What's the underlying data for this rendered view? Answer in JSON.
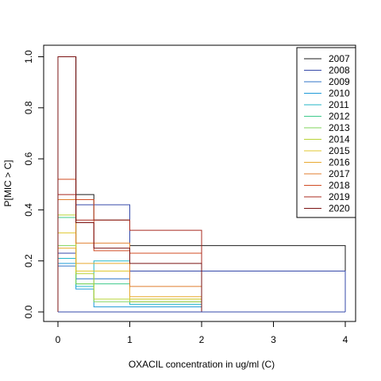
{
  "chart_data": {
    "type": "line",
    "xlabel": "OXACIL concentration in ug/ml (C)",
    "ylabel": "P[MIC > C]",
    "xlim": [
      -0.2,
      4.15
    ],
    "ylim": [
      -0.04,
      1.04
    ],
    "x_ticks": [
      "0",
      "1",
      "2",
      "3",
      "4"
    ],
    "y_ticks": [
      "0.0",
      "0.2",
      "0.4",
      "0.6",
      "0.8",
      "1.0"
    ],
    "grid": false,
    "legend_position": "top-right",
    "series": [
      {
        "name": "2007",
        "color": "#1a1a1a",
        "x": [
          0,
          0.25,
          0.5,
          1,
          2,
          4
        ],
        "y": [
          1.0,
          0.46,
          0.36,
          0.26,
          0.26,
          0
        ]
      },
      {
        "name": "2008",
        "color": "#3347a8",
        "x": [
          0,
          0.25,
          0.5,
          1,
          2,
          4
        ],
        "y": [
          0.23,
          0.42,
          0.42,
          0.16,
          0.16,
          0
        ]
      },
      {
        "name": "2009",
        "color": "#2f73c7",
        "x": [
          0,
          0.25,
          0.5,
          1,
          2,
          4
        ],
        "y": [
          0.18,
          0.13,
          0.13,
          0.04,
          0,
          0
        ]
      },
      {
        "name": "2010",
        "color": "#1e9ad8",
        "x": [
          0,
          0.25,
          0.5,
          1,
          2,
          4
        ],
        "y": [
          0.19,
          0.09,
          0.02,
          0.02,
          0,
          0
        ]
      },
      {
        "name": "2011",
        "color": "#22b5c6",
        "x": [
          0,
          0.25,
          0.5,
          1,
          2,
          4
        ],
        "y": [
          0.21,
          0.1,
          0.2,
          0.03,
          0,
          0
        ]
      },
      {
        "name": "2012",
        "color": "#3cc98a",
        "x": [
          0,
          0.25,
          0.5,
          1,
          2,
          4
        ],
        "y": [
          0.37,
          0.11,
          0.11,
          0.04,
          0,
          0
        ]
      },
      {
        "name": "2013",
        "color": "#7fd35a",
        "x": [
          0,
          0.25,
          0.5,
          1,
          2,
          4
        ],
        "y": [
          0.26,
          0.11,
          0.04,
          0.05,
          0,
          0
        ]
      },
      {
        "name": "2014",
        "color": "#b8d334",
        "x": [
          0,
          0.25,
          0.5,
          1,
          2,
          4
        ],
        "y": [
          0.38,
          0.15,
          0.05,
          0.04,
          0,
          0
        ]
      },
      {
        "name": "2015",
        "color": "#e0c72e",
        "x": [
          0,
          0.25,
          0.5,
          1,
          2,
          4
        ],
        "y": [
          0.31,
          0.16,
          0.16,
          0.05,
          0,
          0
        ]
      },
      {
        "name": "2016",
        "color": "#e8a92f",
        "x": [
          0,
          0.25,
          0.5,
          1,
          2,
          4
        ],
        "y": [
          0.25,
          0.19,
          0.19,
          0.06,
          0,
          0
        ]
      },
      {
        "name": "2017",
        "color": "#e07d2c",
        "x": [
          0,
          0.25,
          0.5,
          1,
          2,
          4
        ],
        "y": [
          0.44,
          0.27,
          0.27,
          0.1,
          0,
          0
        ]
      },
      {
        "name": "2018",
        "color": "#d04b22",
        "x": [
          0,
          0.25,
          0.5,
          1,
          2,
          4
        ],
        "y": [
          0.52,
          0.44,
          0.24,
          0.23,
          0,
          0
        ]
      },
      {
        "name": "2019",
        "color": "#a8281d",
        "x": [
          0,
          0.25,
          0.5,
          1,
          2,
          4
        ],
        "y": [
          0.46,
          0.36,
          0.36,
          0.32,
          0,
          0
        ]
      },
      {
        "name": "2020",
        "color": "#7a1010",
        "x": [
          0,
          0.25,
          0.5,
          1,
          2,
          4
        ],
        "y": [
          1.0,
          0.35,
          0.25,
          0.19,
          0,
          0
        ]
      }
    ]
  }
}
